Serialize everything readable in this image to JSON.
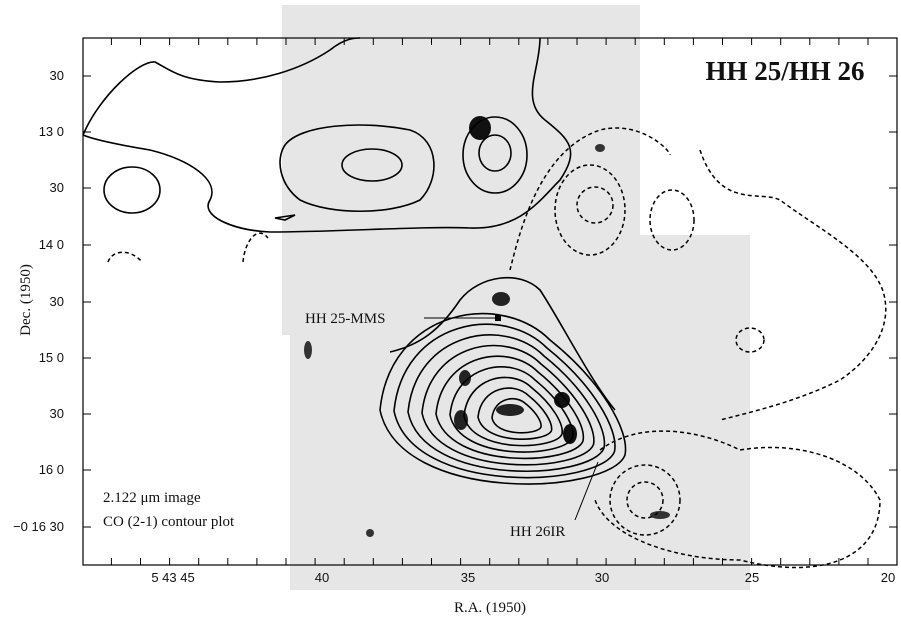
{
  "figure": {
    "title": "HH 25/HH 26",
    "x_axis": {
      "label": "R.A. (1950)",
      "ticks": [
        "5 43 45",
        "40",
        "35",
        "30",
        "25",
        "20"
      ]
    },
    "y_axis": {
      "label": "Dec. (1950)",
      "ticks": [
        "30",
        "13 0",
        "30",
        "14 0",
        "30",
        "15 0",
        "30",
        "16 0",
        "−0 16 30"
      ]
    },
    "annotations": [
      "HH 25-MMS",
      "HH 26IR"
    ],
    "legend_lines": [
      "2.122 μm image",
      "CO (2-1) contour plot"
    ]
  }
}
